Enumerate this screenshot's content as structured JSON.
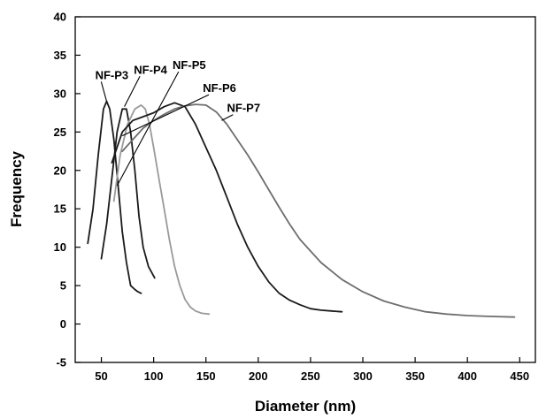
{
  "chart_data": {
    "type": "line",
    "title": "",
    "xlabel": "Diameter (nm)",
    "ylabel": "Frequency",
    "xlim": [
      25,
      465
    ],
    "ylim": [
      -5,
      40
    ],
    "xticks": [
      50,
      100,
      150,
      200,
      250,
      300,
      350,
      400,
      450
    ],
    "yticks": [
      -5,
      0,
      5,
      10,
      15,
      20,
      25,
      30,
      35,
      40
    ],
    "grid": false,
    "legend": "none",
    "series": [
      {
        "name": "NF-P3",
        "color": "#1a1a1a",
        "x": [
          37,
          42,
          47,
          52,
          55,
          58,
          62,
          66,
          70,
          74,
          78,
          82,
          85,
          88
        ],
        "y": [
          10.5,
          15,
          22,
          28,
          29,
          28,
          24,
          18,
          12,
          8,
          5,
          4.5,
          4.2,
          4
        ]
      },
      {
        "name": "NF-P4",
        "color": "#1a1a1a",
        "x": [
          50,
          55,
          60,
          65,
          70,
          74,
          78,
          82,
          86,
          90,
          95,
          101
        ],
        "y": [
          8.5,
          13,
          19,
          25,
          28,
          28,
          25,
          20,
          14,
          10,
          7.5,
          6
        ]
      },
      {
        "name": "NF-P5",
        "color": "#9a9a9a",
        "x": [
          62,
          68,
          75,
          82,
          88,
          92,
          96,
          100,
          105,
          110,
          115,
          120,
          125,
          130,
          135,
          140,
          146,
          153
        ],
        "y": [
          16,
          22,
          26,
          28,
          28.5,
          28,
          26,
          23,
          19,
          15,
          11,
          7.5,
          5,
          3.2,
          2.2,
          1.7,
          1.4,
          1.3
        ]
      },
      {
        "name": "NF-P6",
        "color": "#1a1a1a",
        "x": [
          60,
          70,
          80,
          90,
          100,
          110,
          120,
          130,
          140,
          150,
          160,
          170,
          180,
          190,
          200,
          210,
          220,
          230,
          240,
          250,
          260,
          270,
          280
        ],
        "y": [
          21,
          25,
          26.5,
          27,
          27.5,
          28.3,
          28.8,
          28.3,
          26,
          23,
          20,
          16.5,
          13,
          10,
          7.5,
          5.5,
          4,
          3.1,
          2.5,
          2,
          1.8,
          1.7,
          1.6
        ]
      },
      {
        "name": "NF-P7",
        "color": "#6e6e6e",
        "x": [
          70,
          80,
          90,
          100,
          110,
          120,
          130,
          140,
          150,
          160,
          170,
          180,
          190,
          200,
          210,
          220,
          230,
          240,
          260,
          280,
          300,
          320,
          340,
          360,
          380,
          400,
          420,
          445
        ],
        "y": [
          22.5,
          24,
          25.5,
          26.5,
          27.3,
          28,
          28.4,
          28.6,
          28.5,
          27.6,
          26,
          24,
          22,
          19.8,
          17.5,
          15.2,
          13,
          11,
          8,
          5.8,
          4.2,
          3,
          2.2,
          1.6,
          1.3,
          1.1,
          1,
          0.9
        ]
      }
    ],
    "annotations": [
      {
        "text": "NF-P3",
        "series": 0,
        "label_at": [
          60,
          31.9
        ],
        "points_to": [
          55,
          29
        ]
      },
      {
        "text": "NF-P4",
        "series": 1,
        "label_at": [
          97,
          32.6
        ],
        "points_to": [
          72,
          28.3
        ]
      },
      {
        "text": "NF-P5",
        "series": 2,
        "label_at": [
          134,
          33.2
        ],
        "points_to": [
          65,
          18
        ]
      },
      {
        "text": "NF-P6",
        "series": 3,
        "label_at": [
          163,
          30.2
        ],
        "points_to": [
          70,
          24.5
        ]
      },
      {
        "text": "NF-P7",
        "series": 4,
        "label_at": [
          186,
          27.6
        ],
        "points_to": [
          165,
          26.5
        ]
      }
    ]
  }
}
